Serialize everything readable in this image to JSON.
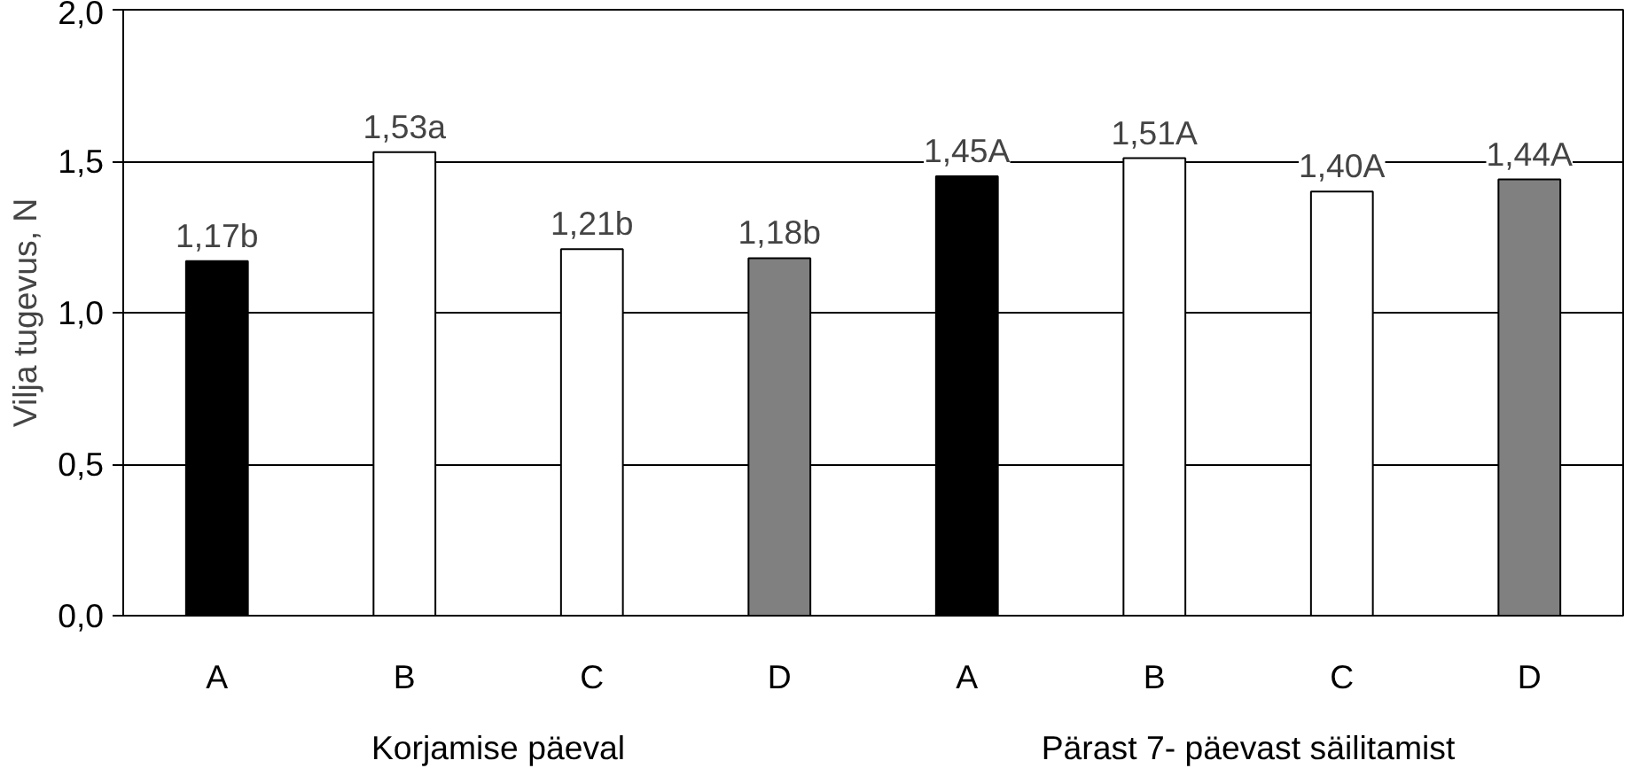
{
  "chart_data": {
    "type": "bar",
    "ylabel": "Vilja tugevus, N",
    "categories": [
      "A",
      "B",
      "C",
      "D",
      "A",
      "B",
      "C",
      "D"
    ],
    "values": [
      1.17,
      1.53,
      1.21,
      1.18,
      1.45,
      1.51,
      1.4,
      1.44
    ],
    "value_labels": [
      "1,17b",
      "1,53a",
      "1,21b",
      "1,18b",
      "1,45A",
      "1,51A",
      "1,40A",
      "1,44A"
    ],
    "colors": [
      "#000000",
      "#ffffff",
      "#ffffff",
      "#808080",
      "#000000",
      "#ffffff",
      "#ffffff",
      "#808080"
    ],
    "ylim": [
      0,
      2
    ],
    "yticks": [
      {
        "value": 0,
        "label": "0,0"
      },
      {
        "value": 0.5,
        "label": "0,5"
      },
      {
        "value": 1,
        "label": "1,0"
      },
      {
        "value": 1.5,
        "label": "1,5"
      },
      {
        "value": 2,
        "label": "2,0"
      }
    ],
    "grid": "y",
    "annotations": [
      "Korjamise päeval",
      "Pärast 7- päevast säilitamist"
    ]
  }
}
